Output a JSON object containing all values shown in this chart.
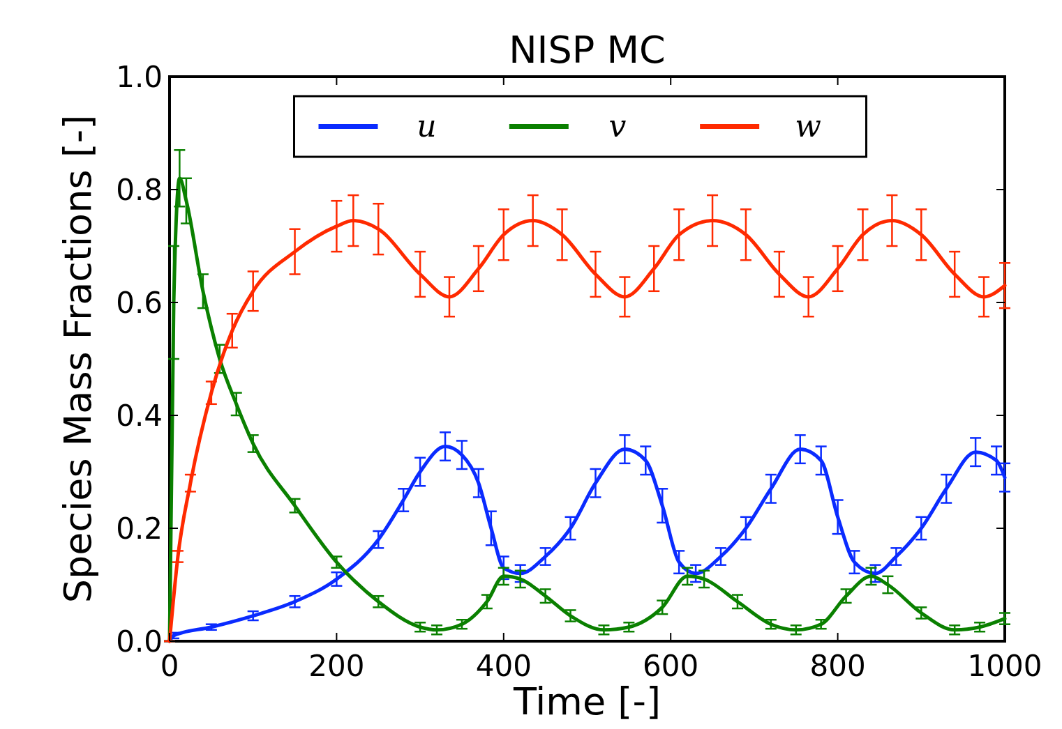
{
  "chart_data": {
    "type": "line",
    "title": "NISP MC",
    "xlabel": "Time [-]",
    "ylabel": "Species Mass Fractions [-]",
    "xlim": [
      0,
      1000
    ],
    "xticks": [
      0,
      200,
      400,
      600,
      800,
      1000
    ],
    "ylim": [
      0,
      1
    ],
    "yticks": [
      {
        "value": 0,
        "label": "0.0"
      },
      {
        "value": 0.2,
        "label": "0.2"
      },
      {
        "value": 0.4,
        "label": "0.4"
      },
      {
        "value": 0.6,
        "label": "0.6"
      },
      {
        "value": 0.8,
        "label": "0.8"
      },
      {
        "value": 1,
        "label": "1.0"
      }
    ],
    "grid": false,
    "legend": "top",
    "marker": "none",
    "line_style": "solid",
    "series": [
      {
        "name": "u",
        "color": "#0a2bff",
        "x": [
          0,
          5,
          50,
          100,
          150,
          200,
          250,
          280,
          300,
          330,
          350,
          370,
          385,
          400,
          420,
          450,
          480,
          510,
          545,
          570,
          590,
          610,
          630,
          660,
          690,
          720,
          755,
          780,
          800,
          820,
          845,
          870,
          900,
          930,
          965,
          990,
          1000
        ],
        "values": [
          0,
          0.01,
          0.025,
          0.045,
          0.07,
          0.11,
          0.18,
          0.25,
          0.3,
          0.345,
          0.33,
          0.28,
          0.2,
          0.13,
          0.12,
          0.15,
          0.2,
          0.28,
          0.34,
          0.32,
          0.24,
          0.14,
          0.12,
          0.15,
          0.2,
          0.27,
          0.34,
          0.32,
          0.22,
          0.14,
          0.12,
          0.15,
          0.2,
          0.27,
          0.335,
          0.32,
          0.29
        ],
        "errors": [
          0,
          0.005,
          0.005,
          0.008,
          0.01,
          0.012,
          0.015,
          0.02,
          0.025,
          0.025,
          0.025,
          0.025,
          0.03,
          0.02,
          0.015,
          0.015,
          0.02,
          0.025,
          0.025,
          0.025,
          0.03,
          0.02,
          0.015,
          0.015,
          0.02,
          0.025,
          0.025,
          0.025,
          0.03,
          0.02,
          0.015,
          0.015,
          0.02,
          0.025,
          0.025,
          0.025,
          0.025
        ]
      },
      {
        "name": "v",
        "color": "#0a8000",
        "x": [
          0,
          5,
          12,
          20,
          40,
          60,
          80,
          100,
          150,
          200,
          250,
          300,
          320,
          350,
          380,
          400,
          420,
          450,
          480,
          520,
          550,
          590,
          620,
          640,
          680,
          720,
          750,
          780,
          810,
          840,
          860,
          900,
          940,
          970,
          1000
        ],
        "values": [
          0,
          0.6,
          0.82,
          0.78,
          0.62,
          0.5,
          0.42,
          0.35,
          0.24,
          0.14,
          0.07,
          0.025,
          0.02,
          0.03,
          0.07,
          0.115,
          0.11,
          0.08,
          0.045,
          0.02,
          0.025,
          0.06,
          0.115,
          0.11,
          0.07,
          0.03,
          0.02,
          0.03,
          0.08,
          0.115,
          0.1,
          0.05,
          0.02,
          0.025,
          0.04
        ],
        "errors": [
          0,
          0.1,
          0.05,
          0.04,
          0.03,
          0.025,
          0.02,
          0.015,
          0.012,
          0.01,
          0.01,
          0.008,
          0.008,
          0.008,
          0.012,
          0.015,
          0.015,
          0.012,
          0.01,
          0.008,
          0.008,
          0.012,
          0.015,
          0.015,
          0.012,
          0.008,
          0.008,
          0.008,
          0.012,
          0.015,
          0.015,
          0.01,
          0.008,
          0.008,
          0.01
        ]
      },
      {
        "name": "w",
        "color": "#ff2a00",
        "x": [
          0,
          10,
          25,
          50,
          75,
          100,
          150,
          200,
          220,
          250,
          300,
          335,
          370,
          400,
          435,
          470,
          510,
          545,
          580,
          610,
          650,
          690,
          730,
          765,
          800,
          830,
          865,
          900,
          940,
          975,
          1000
        ],
        "values": [
          0,
          0.15,
          0.28,
          0.44,
          0.55,
          0.62,
          0.69,
          0.735,
          0.745,
          0.73,
          0.65,
          0.61,
          0.66,
          0.72,
          0.745,
          0.72,
          0.65,
          0.61,
          0.66,
          0.72,
          0.745,
          0.72,
          0.65,
          0.61,
          0.66,
          0.72,
          0.745,
          0.72,
          0.65,
          0.61,
          0.63
        ],
        "errors": [
          0,
          0.01,
          0.015,
          0.02,
          0.03,
          0.035,
          0.04,
          0.045,
          0.045,
          0.045,
          0.04,
          0.035,
          0.04,
          0.045,
          0.045,
          0.045,
          0.04,
          0.035,
          0.04,
          0.045,
          0.045,
          0.045,
          0.04,
          0.035,
          0.04,
          0.045,
          0.045,
          0.045,
          0.04,
          0.035,
          0.04
        ]
      }
    ]
  }
}
